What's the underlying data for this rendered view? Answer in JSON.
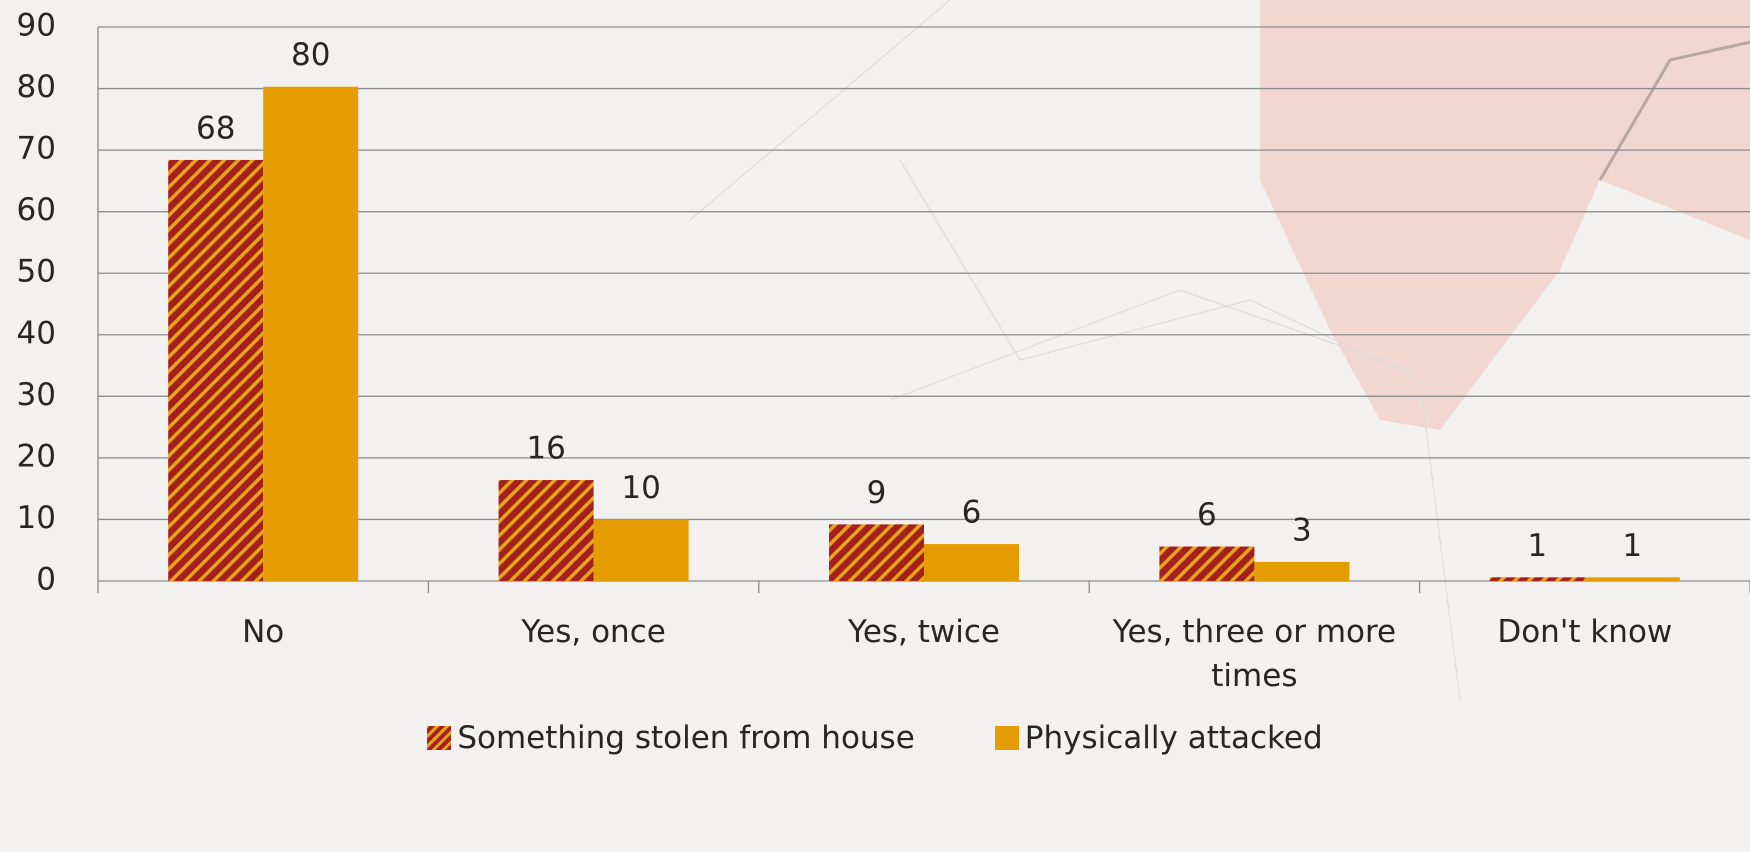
{
  "chart_data": {
    "type": "bar",
    "categories": [
      "No",
      "Yes, once",
      "Yes, twice",
      "Yes, three or more times",
      "Don't know"
    ],
    "series": [
      {
        "name": "Something stolen from house",
        "color": "#a3211a",
        "values": [
          68.4,
          16.4,
          9.2,
          5.6,
          0.6
        ],
        "value_labels": [
          "68",
          "16",
          "9",
          "6",
          "1"
        ]
      },
      {
        "name": "Physically attacked",
        "color": "#e59c00",
        "values": [
          80.3,
          10,
          6,
          3.1,
          0.6
        ],
        "value_labels": [
          "80",
          "10",
          "6",
          "3",
          "1"
        ]
      }
    ],
    "ylim": [
      0,
      90
    ],
    "yticks": [
      0,
      10,
      20,
      30,
      40,
      50,
      60,
      70,
      80,
      90
    ],
    "grid": true,
    "legend": "bottom"
  }
}
